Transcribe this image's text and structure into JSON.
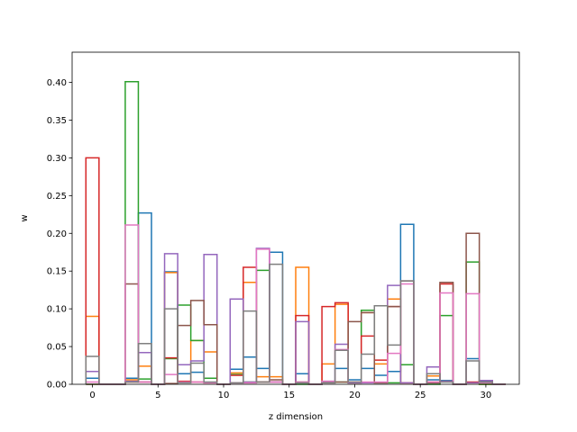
{
  "chart_data": {
    "type": "bar",
    "style": "step-histogram",
    "xlabel": "z dimension",
    "ylabel": "w",
    "xlim": [
      -1.55,
      32.55
    ],
    "ylim": [
      0,
      0.44
    ],
    "xticks": [
      0,
      5,
      10,
      15,
      20,
      25,
      30
    ],
    "yticks": [
      0.0,
      0.05,
      0.1,
      0.15,
      0.2,
      0.25,
      0.3,
      0.35,
      0.4
    ],
    "ytick_labels": [
      "0.00",
      "0.05",
      "0.10",
      "0.15",
      "0.20",
      "0.25",
      "0.30",
      "0.35",
      "0.40"
    ],
    "grid": false,
    "bin_edges": [
      -0.5,
      0.5,
      1.5,
      2.5,
      3.5,
      4.5,
      5.5,
      6.5,
      7.5,
      8.5,
      9.5,
      10.5,
      11.5,
      12.5,
      13.5,
      14.5,
      15.5,
      16.5,
      17.5,
      18.5,
      19.5,
      20.5,
      21.5,
      22.5,
      23.5,
      24.5,
      25.5,
      26.5,
      27.5,
      28.5,
      29.5,
      30.5,
      31.5
    ],
    "series": [
      {
        "color": "#1f77b4",
        "values": [
          0.008,
          0,
          0,
          0.008,
          0.227,
          0,
          0.149,
          0.014,
          0.016,
          0.008,
          0,
          0.02,
          0.036,
          0.021,
          0.175,
          0,
          0.014,
          0,
          0.003,
          0.021,
          0.006,
          0.021,
          0.012,
          0.017,
          0.212,
          0,
          0.006,
          0.005,
          0,
          0.034,
          0.004,
          0
        ]
      },
      {
        "color": "#ff7f0e",
        "values": [
          0.09,
          0,
          0,
          0.006,
          0.024,
          0,
          0.148,
          0.003,
          0.058,
          0.043,
          0,
          0.015,
          0.135,
          0.01,
          0.01,
          0,
          0.155,
          0,
          0.027,
          0.106,
          0.003,
          0.095,
          0.027,
          0.113,
          0.002,
          0,
          0.011,
          0.004,
          0,
          0.002,
          0,
          0
        ]
      },
      {
        "color": "#2ca02c",
        "values": [
          0,
          0,
          0,
          0.401,
          0.007,
          0,
          0.034,
          0.105,
          0.058,
          0.008,
          0,
          0.013,
          0.003,
          0.151,
          0.003,
          0,
          0,
          0,
          0.003,
          0.003,
          0.002,
          0.098,
          0.002,
          0.002,
          0.026,
          0,
          0,
          0.091,
          0,
          0.162,
          0,
          0
        ]
      },
      {
        "color": "#d62728",
        "values": [
          0.3,
          0,
          0,
          0.003,
          0.003,
          0,
          0.035,
          0.004,
          0.003,
          0.002,
          0,
          0.012,
          0.155,
          0.003,
          0.003,
          0,
          0.091,
          0,
          0.103,
          0.108,
          0.002,
          0.064,
          0.032,
          0.103,
          0.002,
          0,
          0.003,
          0.133,
          0,
          0.003,
          0.005,
          0
        ]
      },
      {
        "color": "#9467bd",
        "values": [
          0.017,
          0,
          0,
          0.004,
          0.042,
          0,
          0.173,
          0.026,
          0.031,
          0.172,
          0,
          0.113,
          0.003,
          0.18,
          0.003,
          0,
          0.083,
          0,
          0.004,
          0.053,
          0.002,
          0.002,
          0.002,
          0.131,
          0.002,
          0,
          0.023,
          0.004,
          0,
          0.002,
          0.005,
          0
        ]
      },
      {
        "color": "#8c564b",
        "values": [
          0,
          0,
          0,
          0.133,
          0.003,
          0,
          0.001,
          0.078,
          0.111,
          0.079,
          0,
          0.002,
          0.002,
          0.003,
          0.006,
          0,
          0.003,
          0,
          0.002,
          0.003,
          0.083,
          0.095,
          0.002,
          0.103,
          0.137,
          0,
          0.002,
          0.135,
          0,
          0.2,
          0.003,
          0
        ]
      },
      {
        "color": "#e377c2",
        "values": [
          0.003,
          0,
          0,
          0.211,
          0.003,
          0,
          0.013,
          0.003,
          0.003,
          0.002,
          0,
          0.002,
          0.002,
          0.179,
          0.003,
          0,
          0.003,
          0,
          0.004,
          0.046,
          0.003,
          0.003,
          0.003,
          0.041,
          0.133,
          0,
          0.003,
          0.121,
          0,
          0.12,
          0.002,
          0
        ]
      },
      {
        "color": "#7f7f7f",
        "values": [
          0.037,
          0,
          0,
          0.003,
          0.054,
          0,
          0.1,
          0.002,
          0.028,
          0.003,
          0,
          0.002,
          0.097,
          0.003,
          0.159,
          0,
          0.002,
          0,
          0.002,
          0.045,
          0.003,
          0.04,
          0.104,
          0.052,
          0.137,
          0,
          0.014,
          0.003,
          0,
          0.031,
          0.003,
          0
        ]
      }
    ]
  }
}
